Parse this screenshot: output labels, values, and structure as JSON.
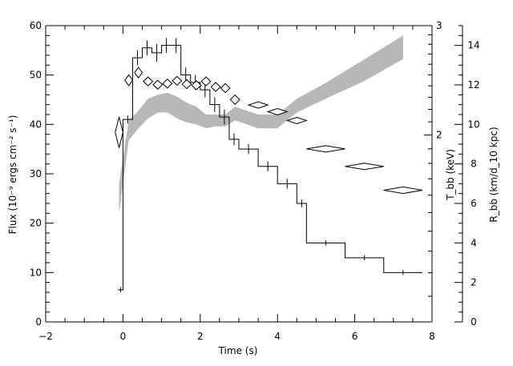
{
  "chart_data": {
    "type": "line",
    "xlabel": "Time (s)",
    "ylabel_left": "Flux (10⁻⁹ ergs cm⁻² s⁻¹)",
    "ylabel_right_temp": "T_bb (keV)",
    "ylabel_right_radius": "R_bb (km/d_10 kpc)",
    "xlim": [
      -2,
      8
    ],
    "ylim_left": [
      0,
      60
    ],
    "ylim_radius": [
      0,
      15
    ],
    "temp_log_range": [
      1,
      3
    ],
    "x_ticks": [
      -2,
      0,
      2,
      4,
      6,
      8
    ],
    "y_left_ticks": [
      0,
      10,
      20,
      30,
      40,
      50,
      60
    ],
    "temp_ticks": [
      2,
      3
    ],
    "radius_ticks": [
      0,
      2,
      4,
      6,
      8,
      10,
      12,
      14
    ],
    "flux_steps": [
      {
        "t0": -0.125,
        "t1": 0.0,
        "flux": 6.5,
        "err": 0.5
      },
      {
        "t0": 0.0,
        "t1": 0.25,
        "flux": 41,
        "err": 0.8
      },
      {
        "t0": 0.25,
        "t1": 0.5,
        "flux": 53.5,
        "err": 1.5
      },
      {
        "t0": 0.5,
        "t1": 0.75,
        "flux": 55.5,
        "err": 1.5
      },
      {
        "t0": 0.75,
        "t1": 1.0,
        "flux": 54.5,
        "err": 1.8
      },
      {
        "t0": 1.0,
        "t1": 1.25,
        "flux": 56,
        "err": 1.5
      },
      {
        "t0": 1.25,
        "t1": 1.5,
        "flux": 56,
        "err": 1.5
      },
      {
        "t0": 1.5,
        "t1": 1.75,
        "flux": 50,
        "err": 1.5
      },
      {
        "t0": 1.75,
        "t1": 2.0,
        "flux": 48.5,
        "err": 1.5
      },
      {
        "t0": 2.0,
        "t1": 2.25,
        "flux": 47,
        "err": 1.5
      },
      {
        "t0": 2.25,
        "t1": 2.5,
        "flux": 44,
        "err": 1.5
      },
      {
        "t0": 2.5,
        "t1": 2.75,
        "flux": 41.5,
        "err": 1.5
      },
      {
        "t0": 2.75,
        "t1": 3.0,
        "flux": 37,
        "err": 1.2
      },
      {
        "t0": 3.0,
        "t1": 3.5,
        "flux": 35,
        "err": 1.0
      },
      {
        "t0": 3.5,
        "t1": 4.0,
        "flux": 31.5,
        "err": 1.0
      },
      {
        "t0": 4.0,
        "t1": 4.5,
        "flux": 28,
        "err": 1.0
      },
      {
        "t0": 4.5,
        "t1": 4.75,
        "flux": 24,
        "err": 0.8
      },
      {
        "t0": 4.75,
        "t1": 5.75,
        "flux": 16,
        "err": 0.5
      },
      {
        "t0": 5.75,
        "t1": 6.75,
        "flux": 13,
        "err": 0.5
      },
      {
        "t0": 6.75,
        "t1": 7.75,
        "flux": 10,
        "err": 0.5
      }
    ],
    "temperature": [
      {
        "t": -0.1,
        "keV": 2.02,
        "t_err": 0.1,
        "keV_err": 0.12
      },
      {
        "t": 0.15,
        "keV": 2.45,
        "t_err": 0.1,
        "keV_err": 0.05
      },
      {
        "t": 0.4,
        "keV": 2.52,
        "t_err": 0.1,
        "keV_err": 0.05
      },
      {
        "t": 0.65,
        "keV": 2.44,
        "t_err": 0.12,
        "keV_err": 0.04
      },
      {
        "t": 0.9,
        "keV": 2.41,
        "t_err": 0.12,
        "keV_err": 0.04
      },
      {
        "t": 1.15,
        "keV": 2.42,
        "t_err": 0.12,
        "keV_err": 0.04
      },
      {
        "t": 1.4,
        "keV": 2.445,
        "t_err": 0.12,
        "keV_err": 0.04
      },
      {
        "t": 1.65,
        "keV": 2.415,
        "t_err": 0.12,
        "keV_err": 0.04
      },
      {
        "t": 1.9,
        "keV": 2.405,
        "t_err": 0.12,
        "keV_err": 0.04
      },
      {
        "t": 2.15,
        "keV": 2.44,
        "t_err": 0.12,
        "keV_err": 0.04
      },
      {
        "t": 2.4,
        "keV": 2.39,
        "t_err": 0.12,
        "keV_err": 0.04
      },
      {
        "t": 2.65,
        "keV": 2.38,
        "t_err": 0.12,
        "keV_err": 0.04
      },
      {
        "t": 2.9,
        "keV": 2.28,
        "t_err": 0.12,
        "keV_err": 0.04
      },
      {
        "t": 3.5,
        "keV": 2.235,
        "t_err": 0.25,
        "keV_err": 0.02
      },
      {
        "t": 4.0,
        "keV": 2.18,
        "t_err": 0.25,
        "keV_err": 0.02
      },
      {
        "t": 4.5,
        "keV": 2.11,
        "t_err": 0.25,
        "keV_err": 0.02
      },
      {
        "t": 5.25,
        "keV": 1.9,
        "t_err": 0.5,
        "keV_err": 0.02
      },
      {
        "t": 6.25,
        "keV": 1.78,
        "t_err": 0.5,
        "keV_err": 0.02
      },
      {
        "t": 7.25,
        "keV": 1.63,
        "t_err": 0.5,
        "keV_err": 0.02
      }
    ],
    "radius_band": {
      "t": [
        -0.1,
        0.15,
        0.4,
        0.65,
        0.9,
        1.15,
        1.4,
        1.65,
        1.9,
        2.15,
        2.4,
        2.65,
        2.9,
        3.5,
        4.0,
        4.5,
        5.25,
        6.25,
        7.25
      ],
      "lower": [
        5.5,
        9.2,
        9.8,
        10.3,
        10.6,
        10.6,
        10.3,
        10.1,
        10.0,
        9.8,
        9.9,
        9.9,
        10.2,
        9.8,
        9.8,
        10.6,
        11.3,
        12.2,
        13.3
      ],
      "upper": [
        7.0,
        10.2,
        10.7,
        11.3,
        11.5,
        11.6,
        11.4,
        11.1,
        10.9,
        10.5,
        10.5,
        10.5,
        10.9,
        10.5,
        10.5,
        11.3,
        12.1,
        13.3,
        14.5
      ]
    }
  }
}
